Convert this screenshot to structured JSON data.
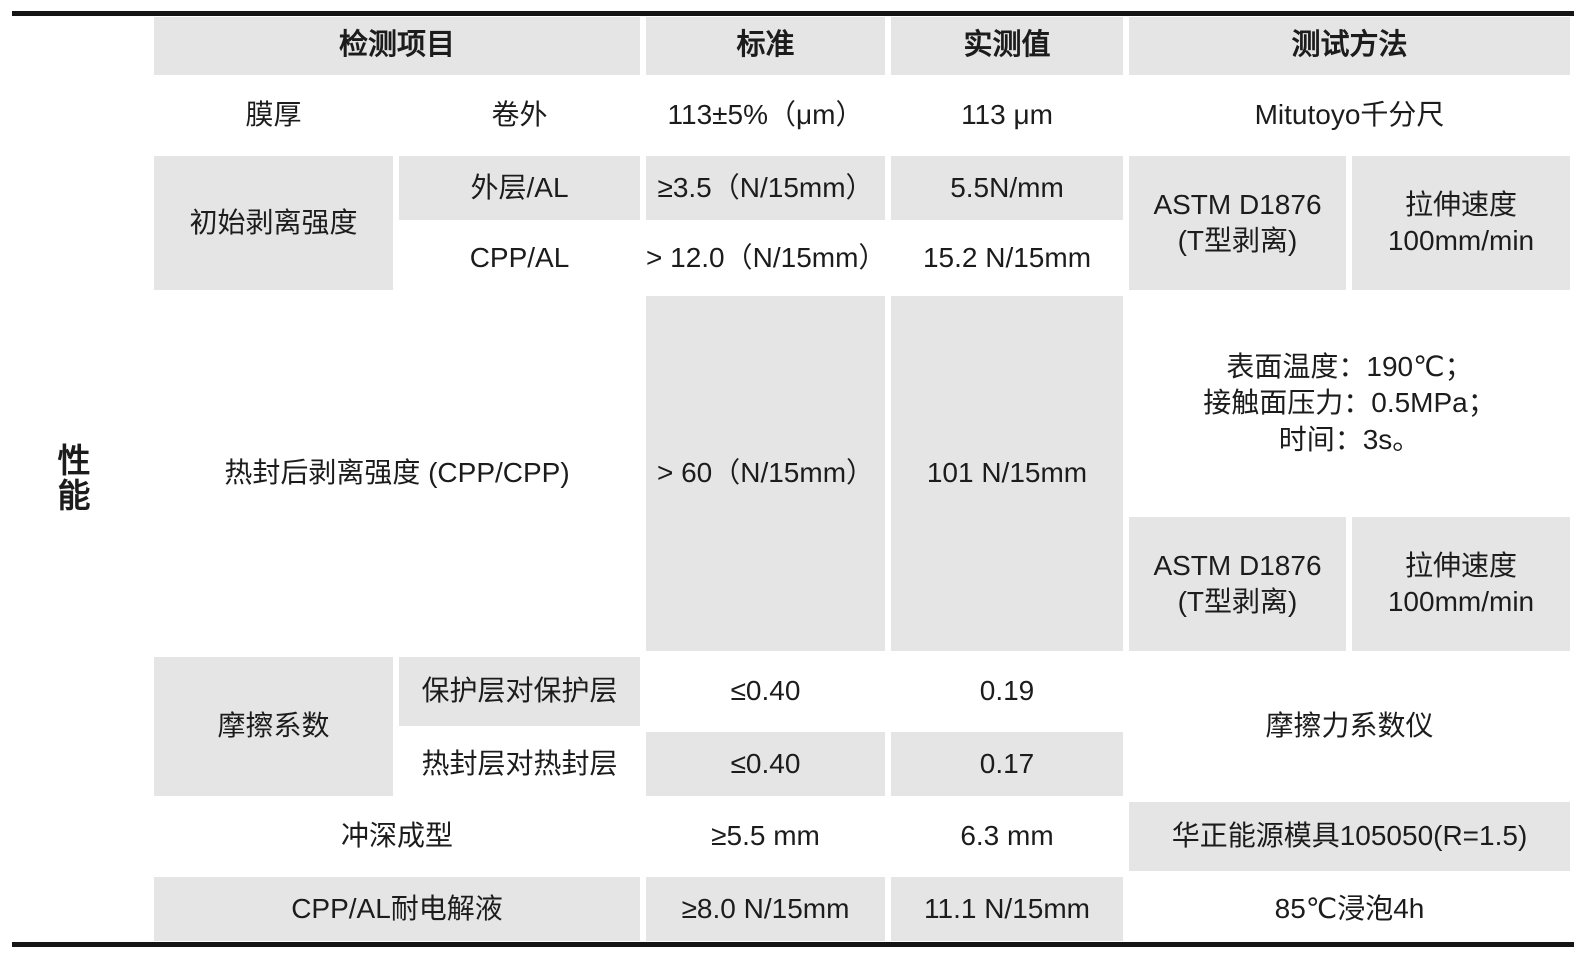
{
  "colors": {
    "cell_gray": "#e6e5e5",
    "text": "#1c1c1c",
    "rule": "#151515"
  },
  "table": {
    "category_label": "性能",
    "columns": {
      "item": "检测项目",
      "standard": "标准",
      "measured": "实测值",
      "method": "测试方法"
    },
    "film_thickness": {
      "name": "膜厚",
      "condition": "卷外",
      "standard": "113±5%（μm）",
      "measured": "113 μm",
      "method": "Mitutoyo千分尺"
    },
    "initial_peel": {
      "name": "初始剥离强度",
      "outer_al": {
        "condition": "外层/AL",
        "standard": "≥3.5（N/15mm）",
        "measured": "5.5N/mm"
      },
      "cpp_al": {
        "condition": "CPP/AL",
        "standard": "> 12.0（N/15mm）",
        "measured": "15.2 N/15mm"
      },
      "method_standard": "ASTM D1876\n(T型剥离)",
      "method_speed": "拉伸速度\n100mm/min"
    },
    "heat_seal_peel": {
      "name": "热封后剥离强度 (CPP/CPP)",
      "standard": "> 60（N/15mm）",
      "measured": "101 N/15mm",
      "method_conditions": "表面温度：190℃；\n接触面压力：0.5MPa；\n时间：3s。",
      "method_standard": "ASTM D1876\n(T型剥离)",
      "method_speed": "拉伸速度\n100mm/min"
    },
    "friction": {
      "name": "摩擦系数",
      "protect_vs_protect": {
        "condition": "保护层对保护层",
        "standard": "≤0.40",
        "measured": "0.19"
      },
      "seal_vs_seal": {
        "condition": "热封层对热封层",
        "standard": "≤0.40",
        "measured": "0.17"
      },
      "method": "摩擦力系数仪"
    },
    "deep_drawing": {
      "name": "冲深成型",
      "standard": "≥5.5 mm",
      "measured": "6.3 mm",
      "method": "华正能源模具105050(R=1.5)"
    },
    "electrolyte_resistance": {
      "name": "CPP/AL耐电解液",
      "standard": "≥8.0 N/15mm",
      "measured": "11.1 N/15mm",
      "method": "85℃浸泡4h"
    }
  }
}
